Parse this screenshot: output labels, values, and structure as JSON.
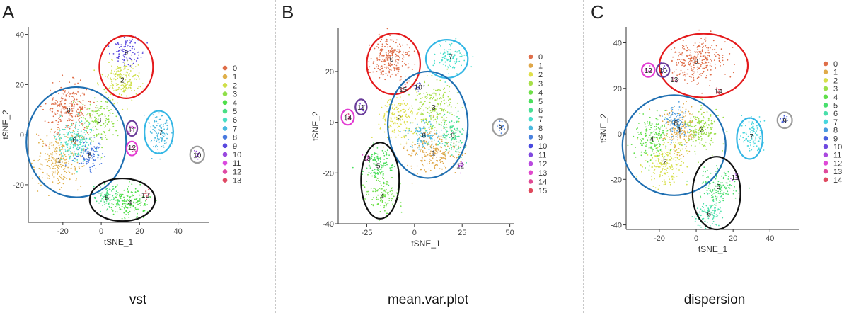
{
  "chart_data": [
    {
      "panel": "A",
      "type": "scatter",
      "caption": "vst",
      "xlabel": "tSNE_1",
      "ylabel": "tSNE_2",
      "xlim": [
        -38,
        56
      ],
      "ylim": [
        -35,
        43
      ],
      "xticks": [
        -20,
        0,
        20,
        40
      ],
      "yticks": [
        -20,
        0,
        20,
        40
      ],
      "legend_position": "right",
      "legend": [
        "0",
        "1",
        "2",
        "3",
        "4",
        "5",
        "6",
        "7",
        "8",
        "9",
        "10",
        "11",
        "12",
        "13"
      ],
      "clusters": [
        {
          "label": "0",
          "x": -17,
          "y": 10,
          "sx": 6,
          "sy": 5,
          "n": 260
        },
        {
          "label": "1",
          "x": -22,
          "y": -10,
          "sx": 6,
          "sy": 5.5,
          "n": 250
        },
        {
          "label": "2",
          "x": 11,
          "y": 22,
          "sx": 5,
          "sy": 4,
          "n": 190
        },
        {
          "label": "3",
          "x": -1,
          "y": 6,
          "sx": 4.5,
          "sy": 4.5,
          "n": 150
        },
        {
          "label": "4",
          "x": 15,
          "y": -27,
          "sx": 5.5,
          "sy": 3.3,
          "n": 180
        },
        {
          "label": "5",
          "x": 3,
          "y": -25,
          "sx": 3,
          "sy": 2.5,
          "n": 80
        },
        {
          "label": "6",
          "x": -14,
          "y": -2,
          "sx": 5,
          "sy": 4,
          "n": 190
        },
        {
          "label": "7",
          "x": 31,
          "y": 1,
          "sx": 3.2,
          "sy": 4,
          "n": 110
        },
        {
          "label": "8",
          "x": -6,
          "y": -8,
          "sx": 4,
          "sy": 3.5,
          "n": 110
        },
        {
          "label": "9",
          "x": 13,
          "y": 33,
          "sx": 3.5,
          "sy": 2.5,
          "n": 90
        },
        {
          "label": "10",
          "x": 50,
          "y": -8,
          "sx": 1,
          "sy": 1,
          "n": 12
        },
        {
          "label": "11",
          "x": 16,
          "y": 2,
          "sx": 1,
          "sy": 1,
          "n": 10
        },
        {
          "label": "12",
          "x": 16,
          "y": -5,
          "sx": 1,
          "sy": 1,
          "n": 10
        },
        {
          "label": "13",
          "x": 23,
          "y": -24,
          "sx": 1.2,
          "sy": 1,
          "n": 12
        }
      ],
      "outlines": [
        {
          "color": "#1f6fb2",
          "cx": -13,
          "cy": -3,
          "rx": 26,
          "ry": 22
        },
        {
          "color": "#e41a1c",
          "cx": 13,
          "cy": 27,
          "rx": 14,
          "ry": 12.5
        },
        {
          "color": "#35b7e5",
          "cx": 30,
          "cy": 1,
          "rx": 7.5,
          "ry": 8.5
        },
        {
          "color": "#6a3d9a",
          "cx": 16,
          "cy": 2.5,
          "rx": 2.8,
          "ry": 3
        },
        {
          "color": "#e33bd2",
          "cx": 16,
          "cy": -5.5,
          "rx": 2.8,
          "ry": 2.8
        },
        {
          "color": "#9c9c9c",
          "cx": 50,
          "cy": -8,
          "rx": 3.7,
          "ry": 3.3
        },
        {
          "color": "#111111",
          "cx": 11,
          "cy": -26,
          "rx": 17,
          "ry": 8.5
        }
      ]
    },
    {
      "panel": "B",
      "type": "scatter",
      "caption": "mean.var.plot",
      "xlabel": "tSNE_1",
      "ylabel": "tSNE_2",
      "xlim": [
        -40,
        52
      ],
      "ylim": [
        -40,
        37
      ],
      "xticks": [
        -25,
        0,
        25,
        50
      ],
      "yticks": [
        -40,
        -20,
        0,
        20
      ],
      "legend_position": "right",
      "legend": [
        "0",
        "1",
        "2",
        "3",
        "4",
        "5",
        "6",
        "7",
        "8",
        "9",
        "10",
        "11",
        "12",
        "13",
        "14",
        "15"
      ],
      "clusters": [
        {
          "label": "0",
          "x": -12,
          "y": 25,
          "sx": 5,
          "sy": 4.5,
          "n": 230
        },
        {
          "label": "1",
          "x": 10,
          "y": -12,
          "sx": 7,
          "sy": 4.5,
          "n": 230
        },
        {
          "label": "2",
          "x": -8,
          "y": 2,
          "sx": 5,
          "sy": 4,
          "n": 160
        },
        {
          "label": "3",
          "x": 10,
          "y": 6,
          "sx": 6,
          "sy": 5,
          "n": 190
        },
        {
          "label": "4",
          "x": -17,
          "y": -29,
          "sx": 4,
          "sy": 4,
          "n": 120
        },
        {
          "label": "5",
          "x": -19,
          "y": -17,
          "sx": 4,
          "sy": 3.5,
          "n": 120
        },
        {
          "label": "6",
          "x": 20,
          "y": -5,
          "sx": 3.5,
          "sy": 4,
          "n": 120
        },
        {
          "label": "7",
          "x": 19,
          "y": 26,
          "sx": 4,
          "sy": 3.5,
          "n": 100
        },
        {
          "label": "8",
          "x": 5,
          "y": -5,
          "sx": 4,
          "sy": 3,
          "n": 100
        },
        {
          "label": "9",
          "x": 45,
          "y": -2,
          "sx": 1.3,
          "sy": 1.3,
          "n": 15
        },
        {
          "label": "10",
          "x": 2,
          "y": 14,
          "sx": 1.3,
          "sy": 1.2,
          "n": 12
        },
        {
          "label": "11",
          "x": -28,
          "y": 6,
          "sx": 1,
          "sy": 1,
          "n": 10
        },
        {
          "label": "12",
          "x": 24,
          "y": -17,
          "sx": 1.2,
          "sy": 1,
          "n": 12
        },
        {
          "label": "13",
          "x": -25,
          "y": -14,
          "sx": 1,
          "sy": 1,
          "n": 10
        },
        {
          "label": "14",
          "x": -35,
          "y": 2,
          "sx": 1,
          "sy": 1,
          "n": 10
        },
        {
          "label": "15",
          "x": -6,
          "y": 13,
          "sx": 1,
          "sy": 1,
          "n": 8
        }
      ],
      "outlines": [
        {
          "color": "#e41a1c",
          "cx": -11,
          "cy": 23,
          "rx": 14,
          "ry": 12
        },
        {
          "color": "#35b7e5",
          "cx": 17,
          "cy": 25,
          "rx": 11,
          "ry": 7.5
        },
        {
          "color": "#1f6fb2",
          "cx": 7,
          "cy": -1,
          "rx": 21,
          "ry": 21
        },
        {
          "color": "#6a3d9a",
          "cx": -28,
          "cy": 6,
          "rx": 3,
          "ry": 3
        },
        {
          "color": "#e33bd2",
          "cx": -35,
          "cy": 2,
          "rx": 3.3,
          "ry": 3
        },
        {
          "color": "#9c9c9c",
          "cx": 45,
          "cy": -2,
          "rx": 4,
          "ry": 3.3
        },
        {
          "color": "#111111",
          "cx": -18,
          "cy": -23,
          "rx": 10,
          "ry": 15
        }
      ]
    },
    {
      "panel": "C",
      "type": "scatter",
      "caption": "dispersion",
      "xlabel": "tSNE_1",
      "ylabel": "tSNE_2",
      "xlim": [
        -38,
        56
      ],
      "ylim": [
        -42,
        47
      ],
      "xticks": [
        -20,
        0,
        20,
        40
      ],
      "yticks": [
        -40,
        -20,
        0,
        20,
        40
      ],
      "legend_position": "right",
      "legend": [
        "0",
        "1",
        "2",
        "3",
        "4",
        "5",
        "6",
        "7",
        "8",
        "9",
        "10",
        "11",
        "12",
        "13",
        "14"
      ],
      "clusters": [
        {
          "label": "0",
          "x": 0,
          "y": 32,
          "sx": 7,
          "sy": 5,
          "n": 270
        },
        {
          "label": "1",
          "x": -9,
          "y": 2,
          "sx": 5,
          "sy": 5,
          "n": 180
        },
        {
          "label": "2",
          "x": -17,
          "y": -12,
          "sx": 6,
          "sy": 5,
          "n": 190
        },
        {
          "label": "3",
          "x": 3,
          "y": 2,
          "sx": 5,
          "sy": 5,
          "n": 170
        },
        {
          "label": "4",
          "x": -24,
          "y": -2,
          "sx": 5,
          "sy": 5,
          "n": 170
        },
        {
          "label": "5",
          "x": 12,
          "y": -23,
          "sx": 5,
          "sy": 4,
          "n": 150
        },
        {
          "label": "6",
          "x": 7,
          "y": -35,
          "sx": 4,
          "sy": 3,
          "n": 100
        },
        {
          "label": "7",
          "x": 30,
          "y": -1,
          "sx": 3,
          "sy": 4,
          "n": 100
        },
        {
          "label": "8",
          "x": -11,
          "y": 5,
          "sx": 4,
          "sy": 3.5,
          "n": 100
        },
        {
          "label": "9",
          "x": 48,
          "y": 6,
          "sx": 1.2,
          "sy": 1,
          "n": 15
        },
        {
          "label": "10",
          "x": -18,
          "y": 28,
          "sx": 1,
          "sy": 1,
          "n": 10
        },
        {
          "label": "11",
          "x": 21,
          "y": -19,
          "sx": 1,
          "sy": 1,
          "n": 8
        },
        {
          "label": "12",
          "x": -26,
          "y": 28,
          "sx": 1,
          "sy": 1,
          "n": 8
        },
        {
          "label": "13",
          "x": -12,
          "y": 24,
          "sx": 1,
          "sy": 1,
          "n": 8
        },
        {
          "label": "14",
          "x": 12,
          "y": 19,
          "sx": 1,
          "sy": 1,
          "n": 8
        }
      ],
      "outlines": [
        {
          "color": "#e41a1c",
          "cx": 4,
          "cy": 30,
          "rx": 24,
          "ry": 14
        },
        {
          "color": "#1f6fb2",
          "cx": -12,
          "cy": -5,
          "rx": 28,
          "ry": 22
        },
        {
          "color": "#35b7e5",
          "cx": 29,
          "cy": -2,
          "rx": 7,
          "ry": 9
        },
        {
          "color": "#9c9c9c",
          "cx": 48,
          "cy": 6,
          "rx": 4,
          "ry": 3.5
        },
        {
          "color": "#6a3d9a",
          "cx": -18,
          "cy": 28,
          "rx": 3.5,
          "ry": 3
        },
        {
          "color": "#e33bd2",
          "cx": -26,
          "cy": 28,
          "rx": 3.5,
          "ry": 3
        },
        {
          "color": "#111111",
          "cx": 11,
          "cy": -26,
          "rx": 13,
          "ry": 16
        }
      ]
    }
  ]
}
